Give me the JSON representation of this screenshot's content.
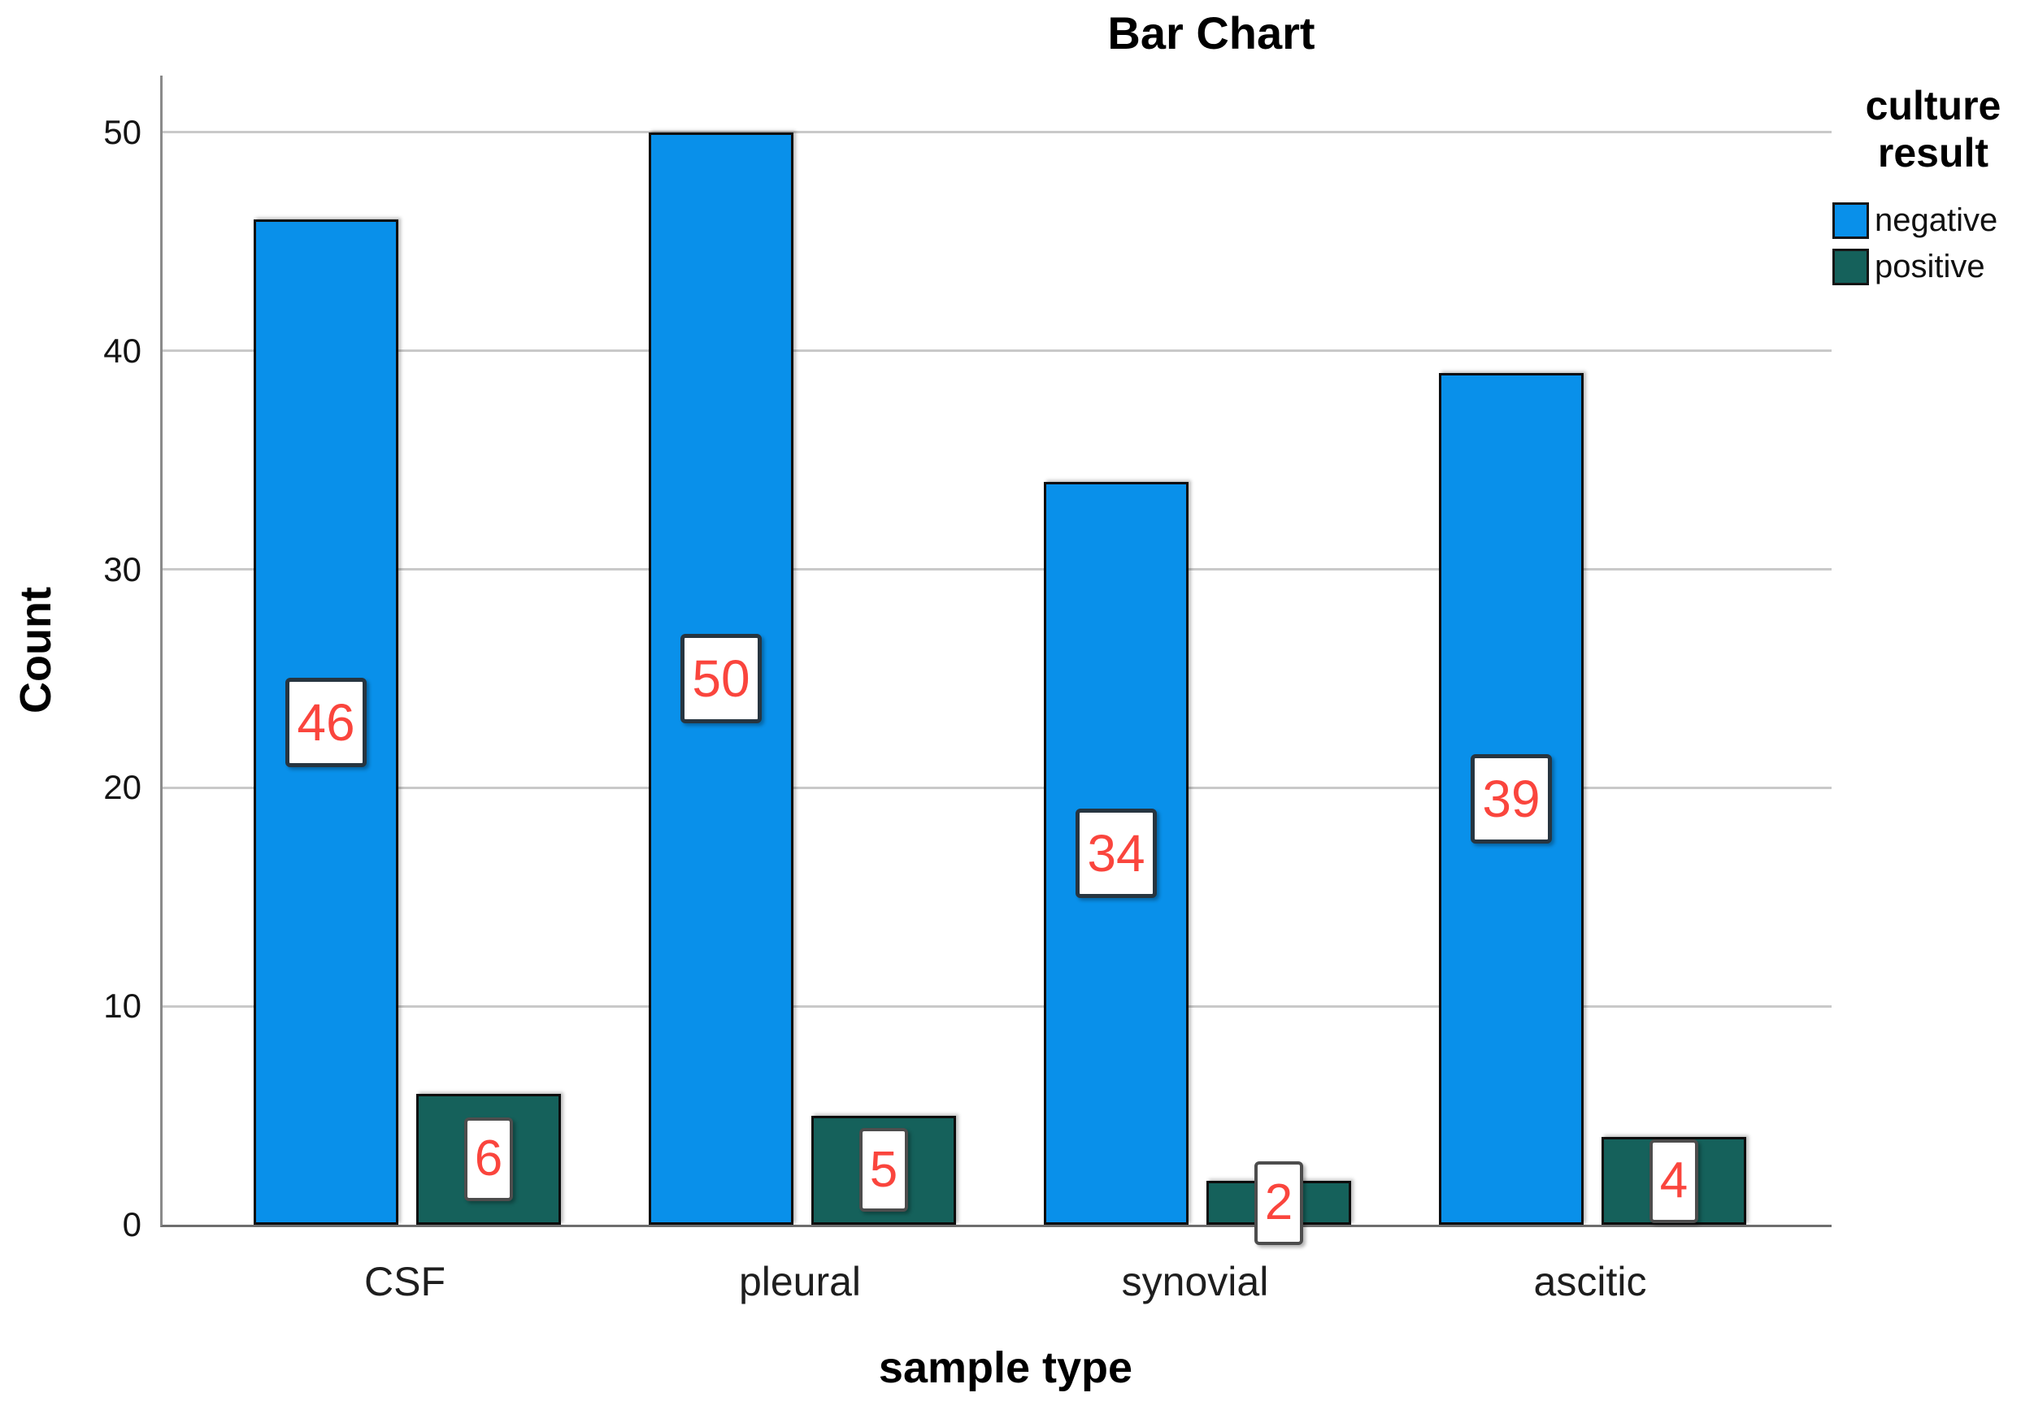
{
  "title": "Bar Chart",
  "axes": {
    "y_label": "Count",
    "x_label": "sample type"
  },
  "legend": {
    "title": "culture result",
    "items": [
      {
        "label": "negative",
        "color": "#0990EA"
      },
      {
        "label": "positive",
        "color": "#15615B"
      }
    ]
  },
  "chart_data": {
    "type": "bar",
    "title": "Bar Chart",
    "xlabel": "sample type",
    "ylabel": "Count",
    "categories": [
      "CSF",
      "pleural",
      "synovial",
      "ascitic"
    ],
    "series": [
      {
        "name": "negative",
        "color": "#0990EA",
        "values": [
          46,
          50,
          34,
          39
        ]
      },
      {
        "name": "positive",
        "color": "#15615B",
        "values": [
          6,
          5,
          2,
          4
        ]
      }
    ],
    "yticks": [
      0,
      10,
      20,
      30,
      40,
      50
    ],
    "ylim": [
      0,
      52.6
    ],
    "grid": true,
    "legend_position": "right",
    "legend_title": "culture result",
    "value_labels_shown": true,
    "value_label_color": "#FA453D"
  }
}
